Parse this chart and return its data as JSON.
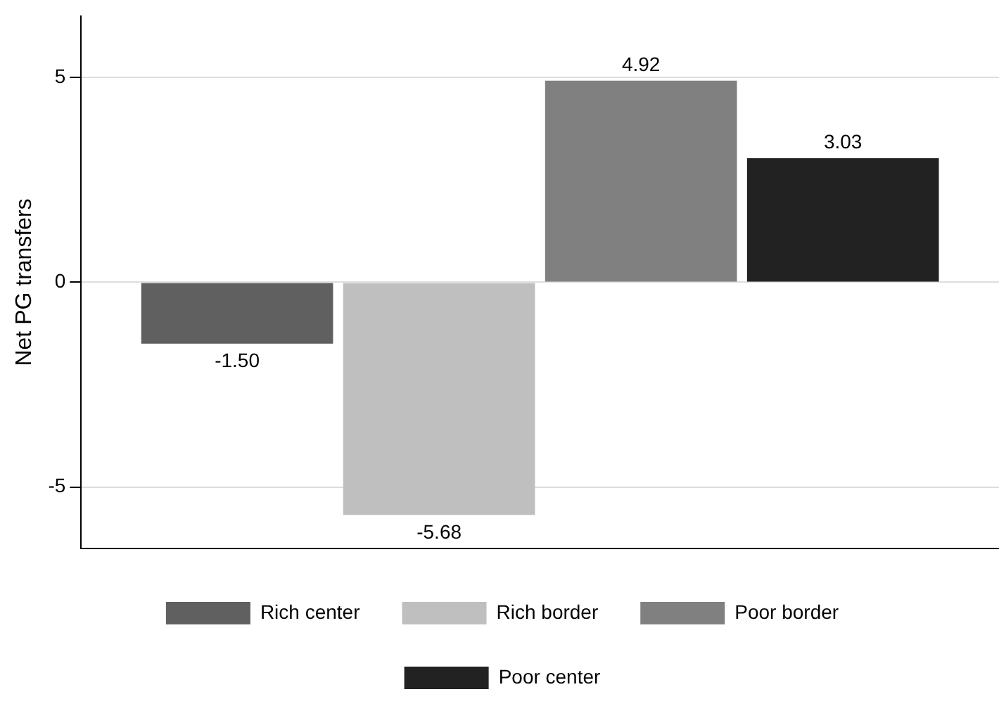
{
  "chart_data": {
    "type": "bar",
    "ylabel": "Net PG transfers",
    "categories": [
      null
    ],
    "series": [
      {
        "name": "Rich center",
        "color": "#606060",
        "values": [
          -1.5
        ],
        "value_labels": [
          "-1.50"
        ]
      },
      {
        "name": "Rich border",
        "color": "#bfbfbf",
        "values": [
          -5.68
        ],
        "value_labels": [
          "-5.68"
        ]
      },
      {
        "name": "Poor border",
        "color": "#808080",
        "values": [
          4.92
        ],
        "value_labels": [
          "4.92"
        ]
      },
      {
        "name": "Poor center",
        "color": "#222222",
        "values": [
          3.03
        ],
        "value_labels": [
          "3.03"
        ]
      }
    ],
    "ylim": [
      -6.5,
      6.5
    ],
    "yticks": [
      -5,
      0,
      5
    ],
    "grid": "y",
    "legend": "bottom"
  }
}
